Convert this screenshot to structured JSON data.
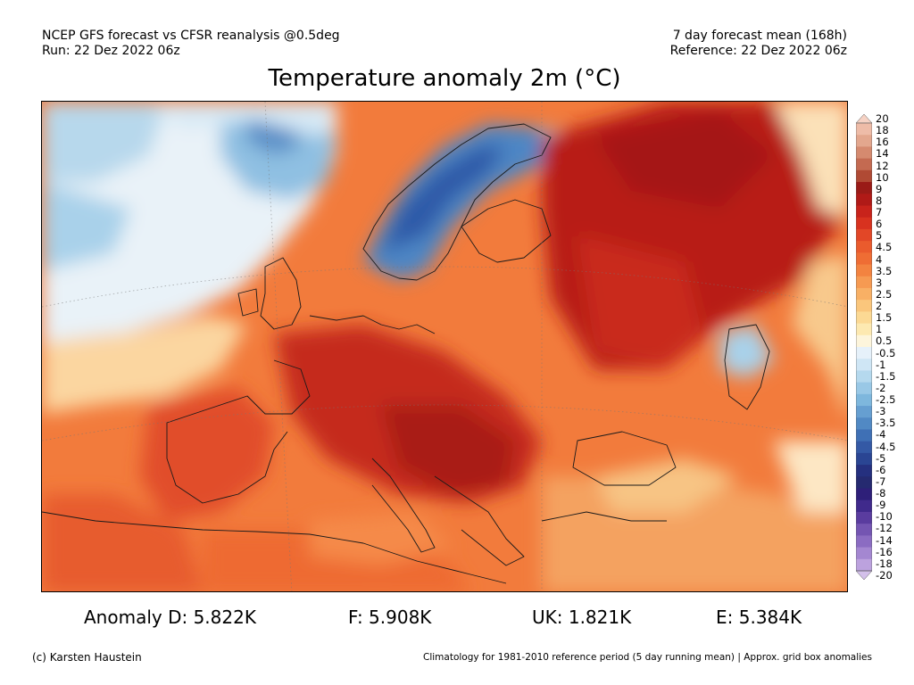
{
  "header": {
    "left_line1": "NCEP GFS forecast vs CFSR reanalysis @0.5deg",
    "left_line2": "Run: 22 Dez 2022 06z",
    "right_line1": "7 day forecast mean (168h)",
    "right_line2": "Reference: 22 Dez 2022 06z"
  },
  "title": "Temperature anomaly 2m (°C)",
  "colorbar": {
    "labels": [
      "20",
      "18",
      "16",
      "14",
      "12",
      "10",
      "9",
      "8",
      "7",
      "6",
      "5",
      "4.5",
      "4",
      "3.5",
      "3",
      "2.5",
      "2",
      "1.5",
      "1",
      "0.5",
      "-0.5",
      "-1",
      "-1.5",
      "-2",
      "-2.5",
      "-3",
      "-3.5",
      "-4",
      "-4.5",
      "-5",
      "-6",
      "-7",
      "-8",
      "-9",
      "-10",
      "-12",
      "-14",
      "-16",
      "-18",
      "-20"
    ],
    "colors": [
      "#f6d2c4",
      "#eebca8",
      "#e3a78e",
      "#d58a6f",
      "#c46a51",
      "#b04a34",
      "#9a1b17",
      "#b01a17",
      "#c8231b",
      "#d8321f",
      "#e24727",
      "#ea5b2d",
      "#ef6d34",
      "#f38340",
      "#f69a52",
      "#f8b065",
      "#fac67c",
      "#fcd994",
      "#fde9b1",
      "#fdf5dc",
      "#e6f1fa",
      "#cfe6f5",
      "#b5d9ee",
      "#99c8e6",
      "#7eb7dd",
      "#669fd1",
      "#5189c4",
      "#3f70b5",
      "#3459a5",
      "#2a4593",
      "#25307f",
      "#252a70",
      "#2e1f79",
      "#402a8c",
      "#5a3c9f",
      "#7455b2",
      "#8b6cc2",
      "#a487d1",
      "#bca2de",
      "#d3c0ea"
    ]
  },
  "stats": {
    "d": "Anomaly D: 5.822K",
    "f": "F: 5.908K",
    "uk": "UK: 1.821K",
    "e": "E: 5.384K"
  },
  "footer": {
    "left": "(c) Karsten Haustein",
    "right": "Climatology for 1981-2010 reference period (5 day running mean) | Approx. grid box anomalies"
  }
}
